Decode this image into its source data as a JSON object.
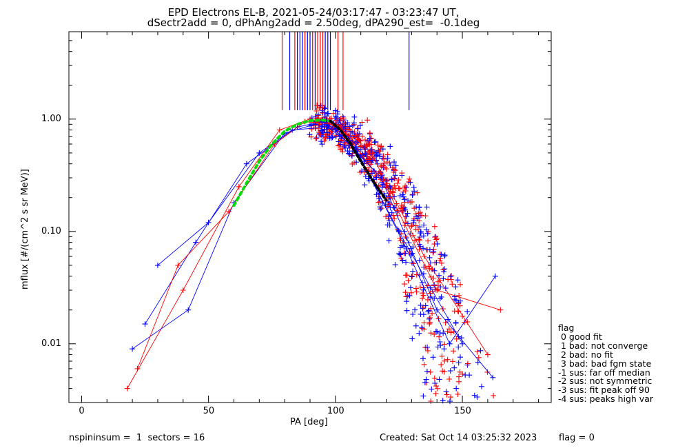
{
  "title_line1": "EPD Electrons EL-B, 2021-05-24/03:17:47 - 03:23:47 UT,",
  "title_line2": "dSectr2add = 0, dPhAng2add = 2.50deg, dPA290_est=  -0.1deg",
  "footer": {
    "left": "nspininsum =  1  sectors = 16",
    "created": "Created: Sat Oct 14 03:25:32 2023",
    "flag": "flag = 0"
  },
  "legend": {
    "title": "flag",
    "entries": [
      " 0 good fit",
      " 1 bad: not converge",
      " 2 bad: no fit",
      " 3 bad: bad fgm state",
      "-1 sus: far off median",
      "-2 sus: not symmetric",
      "-3 sus: fit peak off 90",
      "-4 sus: peaks high var"
    ]
  },
  "colors": {
    "red": "#ff0000",
    "blue": "#0000ff",
    "fit_green": "#00dd00",
    "fit_black": "#000000"
  },
  "chart_data": {
    "type": "line",
    "xlabel": "PA [deg]",
    "ylabel": "mflux [#/(cm^2 s sr MeV)]",
    "xlim": [
      -5,
      185
    ],
    "ylim": [
      0.003,
      6
    ],
    "yscale": "log",
    "xticks": [
      "0",
      "50",
      "100",
      "150"
    ],
    "yticks": [
      "0.01",
      "0.10",
      "1.00"
    ],
    "grid": false,
    "legend_position": "outside-right",
    "sample_series": [
      {
        "color": "red",
        "x": [
          18,
          40,
          62,
          78,
          90,
          102,
          120,
          140,
          165
        ],
        "y": [
          0.004,
          0.03,
          0.25,
          0.8,
          1.0,
          0.85,
          0.25,
          0.03,
          0.02
        ]
      },
      {
        "color": "blue",
        "x": [
          20,
          42,
          60,
          80,
          92,
          100,
          118,
          140,
          162
        ],
        "y": [
          0.009,
          0.02,
          0.18,
          0.75,
          0.9,
          0.8,
          0.3,
          0.02,
          0.005
        ]
      },
      {
        "color": "blue",
        "x": [
          25,
          45,
          65,
          85,
          95,
          105,
          125,
          150
        ],
        "y": [
          0.015,
          0.08,
          0.4,
          0.85,
          0.95,
          0.7,
          0.1,
          0.01
        ]
      },
      {
        "color": "red",
        "x": [
          22,
          38,
          58,
          76,
          88,
          100,
          115,
          135,
          160
        ],
        "y": [
          0.006,
          0.05,
          0.15,
          0.6,
          0.95,
          0.9,
          0.45,
          0.06,
          0.008
        ]
      },
      {
        "color": "blue",
        "x": [
          30,
          50,
          70,
          83,
          97,
          108,
          128,
          145,
          163
        ],
        "y": [
          0.05,
          0.12,
          0.5,
          0.8,
          0.85,
          0.55,
          0.07,
          0.01,
          0.04
        ]
      }
    ],
    "fit_curve_green": {
      "x": [
        60,
        65,
        70,
        75,
        80,
        85,
        90,
        95,
        98
      ],
      "y": [
        0.17,
        0.27,
        0.42,
        0.6,
        0.78,
        0.9,
        0.97,
        0.98,
        0.96
      ]
    },
    "fit_curve_black": {
      "x": [
        98,
        102,
        106,
        110,
        114,
        118,
        120
      ],
      "y": [
        0.96,
        0.8,
        0.6,
        0.42,
        0.3,
        0.22,
        0.19
      ]
    },
    "vertical_markers": [
      {
        "color": "red",
        "x": [
          79,
          84,
          88,
          91,
          93,
          94,
          95,
          101,
          103
        ]
      },
      {
        "color": "blue",
        "x": [
          82,
          85,
          86,
          87,
          89,
          90,
          92,
          96,
          97,
          98,
          129
        ]
      }
    ]
  }
}
